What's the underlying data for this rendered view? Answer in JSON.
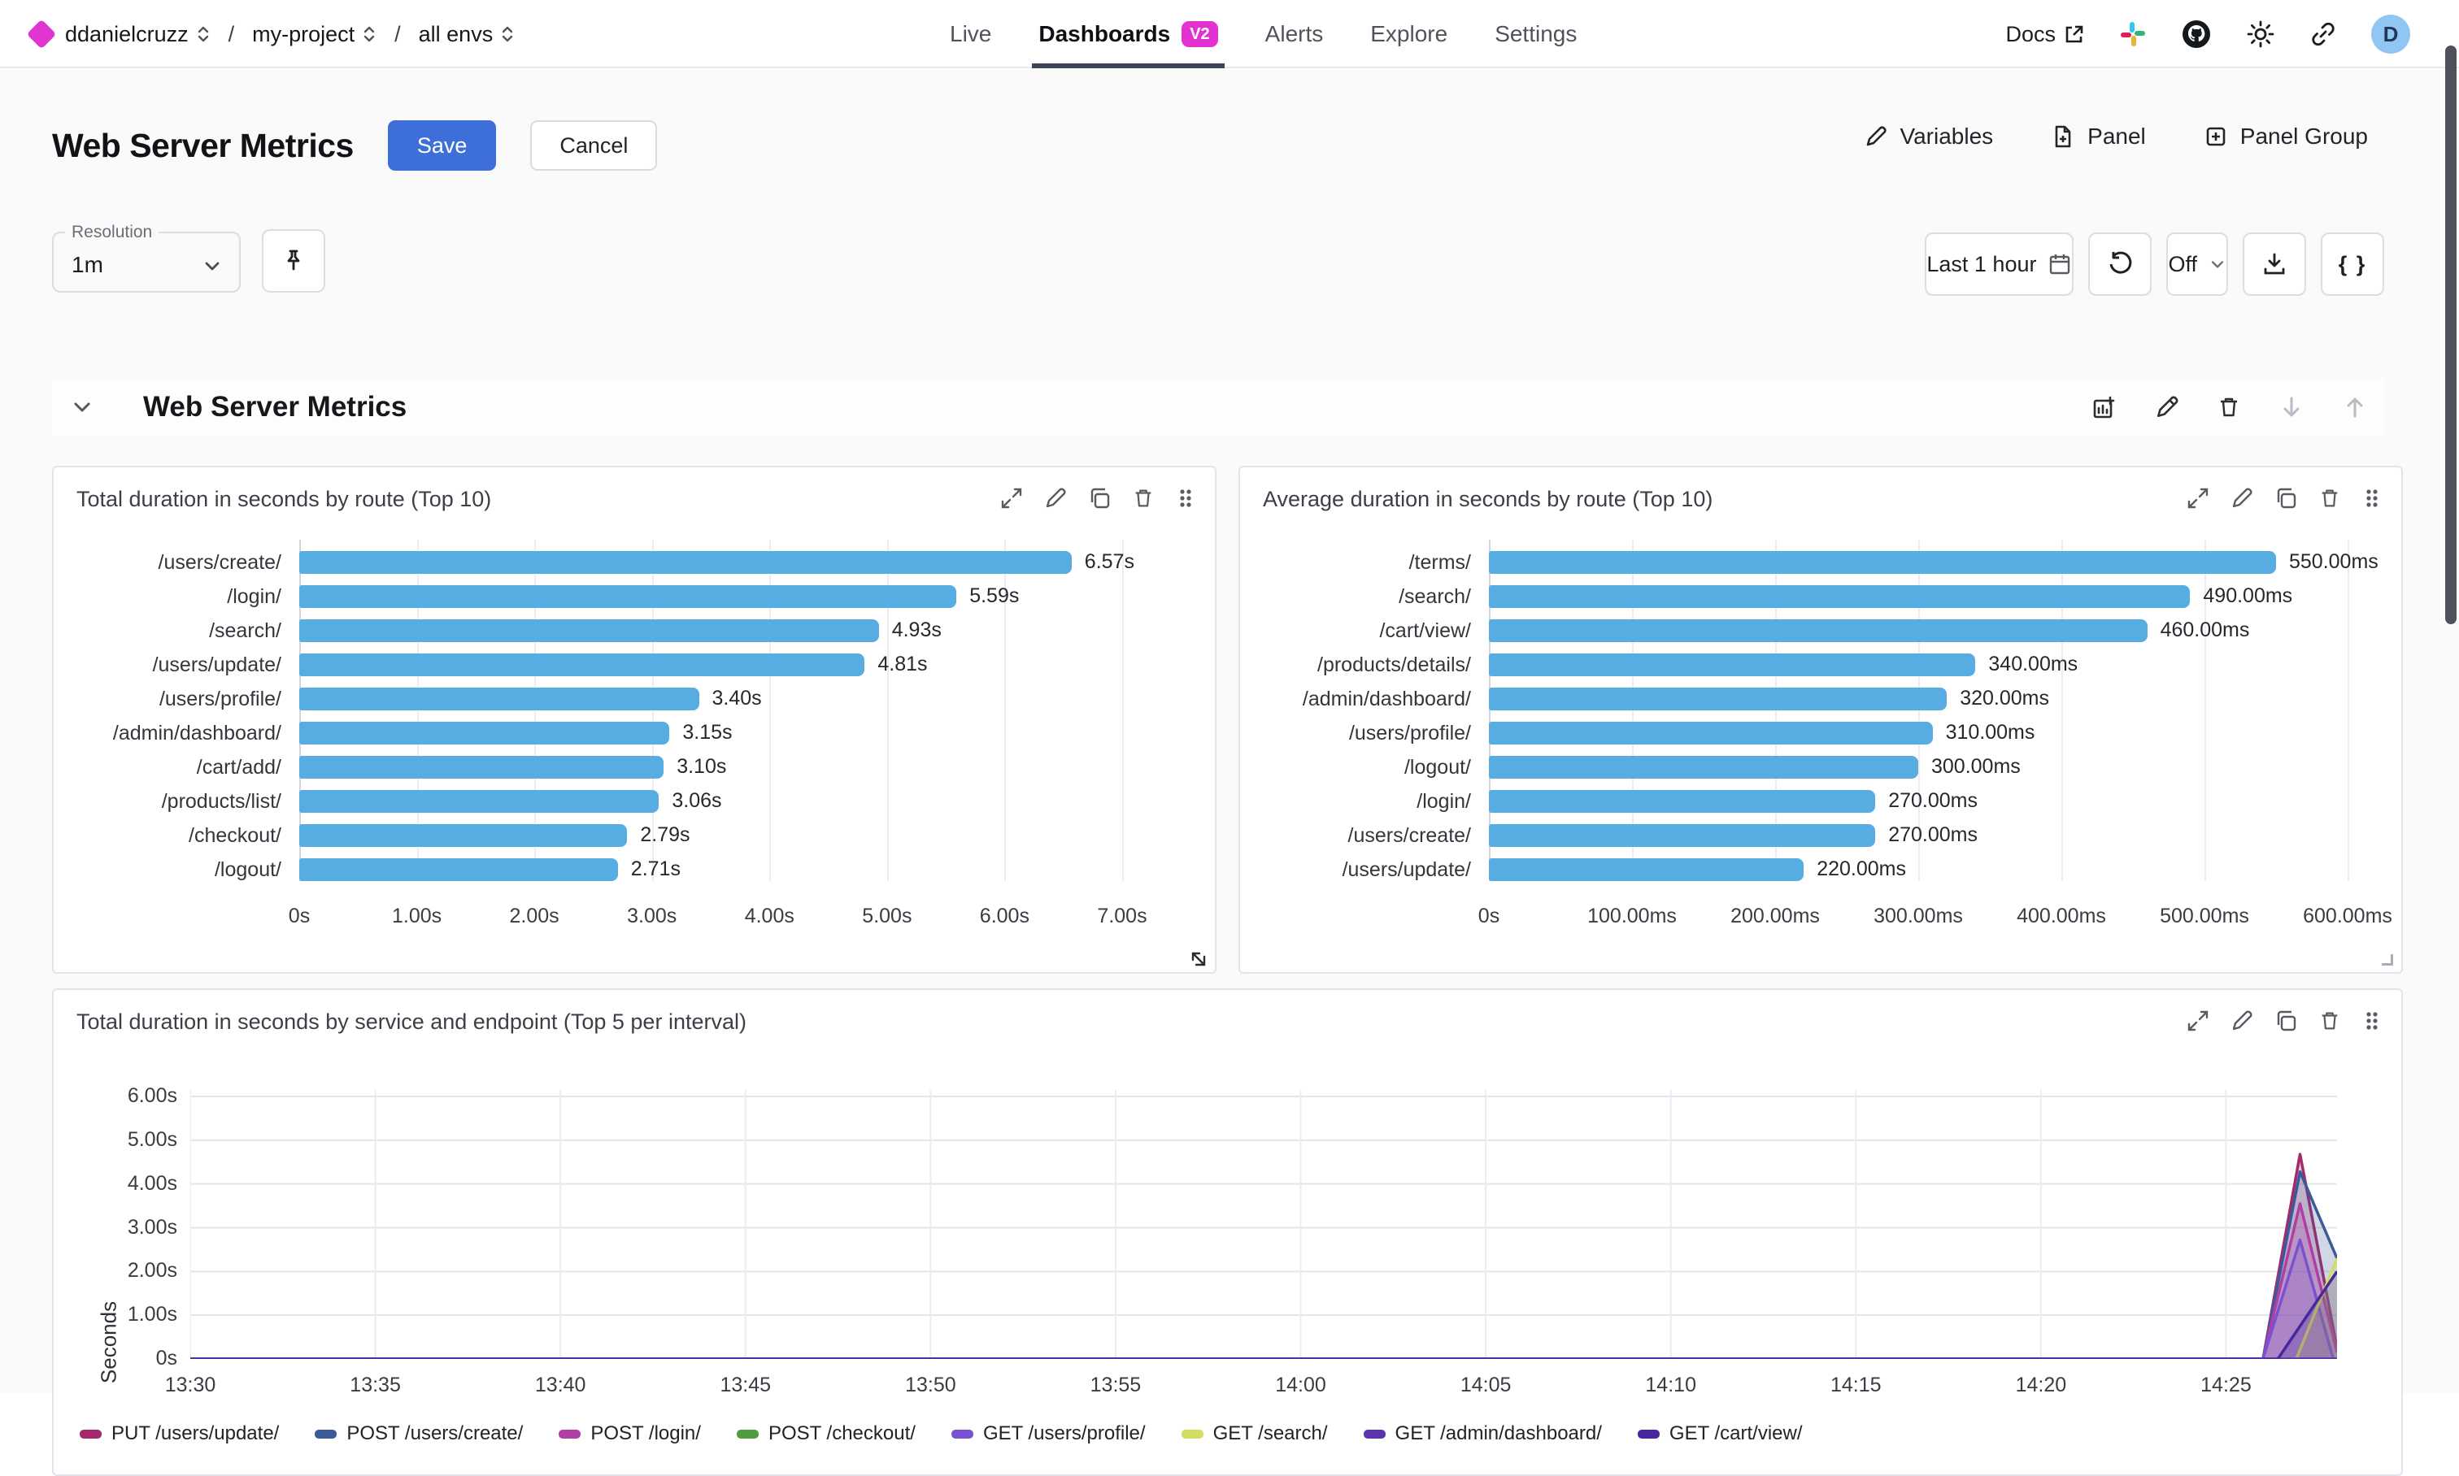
{
  "header": {
    "breadcrumb": {
      "org": "ddanielcruzz",
      "sep1": "/",
      "project": "my-project",
      "sep2": "/",
      "env": "all envs"
    },
    "nav": [
      {
        "label": "Live"
      },
      {
        "label": "Dashboards",
        "badge": "V2"
      },
      {
        "label": "Alerts"
      },
      {
        "label": "Explore"
      },
      {
        "label": "Settings"
      }
    ],
    "docs_label": "Docs",
    "avatar_letter": "D"
  },
  "page": {
    "title": "Web Server Metrics",
    "save_label": "Save",
    "cancel_label": "Cancel",
    "actions": {
      "variables": "Variables",
      "panel": "Panel",
      "panel_group": "Panel Group"
    }
  },
  "toolbar": {
    "resolution_label": "Resolution",
    "resolution_value": "1m",
    "time_range": "Last 1 hour",
    "refresh_interval": "Off",
    "braces_label": "{ }"
  },
  "section": {
    "title": "Web Server Metrics"
  },
  "chart_data": [
    {
      "type": "bar",
      "orientation": "horizontal",
      "title": "Total duration in seconds by route (Top 10)",
      "categories": [
        "/users/create/",
        "/login/",
        "/search/",
        "/users/update/",
        "/users/profile/",
        "/admin/dashboard/",
        "/cart/add/",
        "/products/list/",
        "/checkout/",
        "/logout/"
      ],
      "values": [
        6.57,
        5.59,
        4.93,
        4.81,
        3.4,
        3.15,
        3.1,
        3.06,
        2.79,
        2.71
      ],
      "value_labels": [
        "6.57s",
        "5.59s",
        "4.93s",
        "4.81s",
        "3.40s",
        "3.15s",
        "3.10s",
        "3.06s",
        "2.79s",
        "2.71s"
      ],
      "xticks": [
        "0s",
        "1.00s",
        "2.00s",
        "3.00s",
        "4.00s",
        "5.00s",
        "6.00s",
        "7.00s"
      ],
      "xlim": [
        0,
        7
      ],
      "bar_color": "#57ade2"
    },
    {
      "type": "bar",
      "orientation": "horizontal",
      "title": "Average duration in seconds by route (Top 10)",
      "categories": [
        "/terms/",
        "/search/",
        "/cart/view/",
        "/products/details/",
        "/admin/dashboard/",
        "/users/profile/",
        "/logout/",
        "/login/",
        "/users/create/",
        "/users/update/"
      ],
      "values": [
        550,
        490,
        460,
        340,
        320,
        310,
        300,
        270,
        270,
        220
      ],
      "value_labels": [
        "550.00ms",
        "490.00ms",
        "460.00ms",
        "340.00ms",
        "320.00ms",
        "310.00ms",
        "300.00ms",
        "270.00ms",
        "270.00ms",
        "220.00ms"
      ],
      "xticks": [
        "0s",
        "100.00ms",
        "200.00ms",
        "300.00ms",
        "400.00ms",
        "500.00ms",
        "600.00ms"
      ],
      "xlim": [
        0,
        600
      ],
      "bar_color": "#57ade2"
    },
    {
      "type": "area",
      "title": "Total duration in seconds by service and endpoint (Top 5 per interval)",
      "ylabel": "Seconds",
      "yticks": [
        "0s",
        "1.00s",
        "2.00s",
        "3.00s",
        "4.00s",
        "5.00s",
        "6.00s"
      ],
      "ylim": [
        0,
        6
      ],
      "xticks": [
        "13:30",
        "13:35",
        "13:40",
        "13:45",
        "13:50",
        "13:55",
        "14:00",
        "14:05",
        "14:10",
        "14:15",
        "14:20",
        "14:25"
      ],
      "x_tick_minutes": [
        0,
        5,
        10,
        15,
        20,
        25,
        30,
        35,
        40,
        45,
        50,
        55
      ],
      "x_domain_minutes": [
        0,
        58
      ],
      "grid": true,
      "legend_position": "bottom",
      "series": [
        {
          "name": "PUT /users/update/",
          "color": "#a42a6b",
          "points": [
            [
              0,
              0
            ],
            [
              56,
              0
            ],
            [
              57,
              4.68
            ],
            [
              58,
              0.25
            ]
          ]
        },
        {
          "name": "POST /users/create/",
          "color": "#3b5a98",
          "points": [
            [
              0,
              0
            ],
            [
              56,
              0
            ],
            [
              57,
              4.28
            ],
            [
              58,
              2.3
            ]
          ]
        },
        {
          "name": "POST /login/",
          "color": "#b03fa5",
          "points": [
            [
              0,
              0
            ],
            [
              56,
              0
            ],
            [
              57,
              3.55
            ],
            [
              58,
              0.15
            ]
          ]
        },
        {
          "name": "POST /checkout/",
          "color": "#4f9d3e",
          "points": [
            [
              0,
              0
            ],
            [
              58,
              0
            ]
          ]
        },
        {
          "name": "GET /users/profile/",
          "color": "#7a52d1",
          "points": [
            [
              0,
              0
            ],
            [
              56,
              0
            ],
            [
              57,
              2.72
            ],
            [
              57.9,
              0
            ],
            [
              58,
              0
            ]
          ]
        },
        {
          "name": "GET /search/",
          "color": "#d3dd61",
          "points": [
            [
              0,
              0
            ],
            [
              56.9,
              0
            ],
            [
              58,
              2.3
            ]
          ]
        },
        {
          "name": "GET /admin/dashboard/",
          "color": "#5c35ad",
          "points": [
            [
              0,
              0
            ],
            [
              58,
              0
            ]
          ]
        },
        {
          "name": "GET /cart/view/",
          "color": "#46279e",
          "points": [
            [
              0,
              0
            ],
            [
              56.4,
              0
            ],
            [
              58,
              2.0
            ]
          ]
        }
      ]
    }
  ]
}
